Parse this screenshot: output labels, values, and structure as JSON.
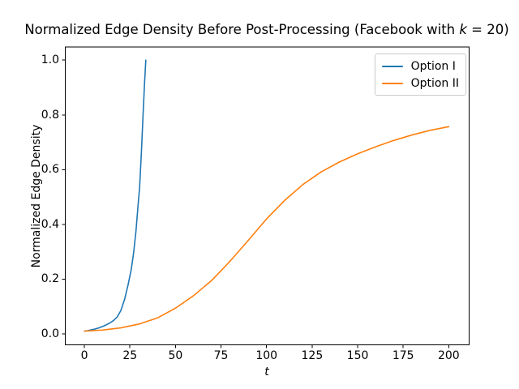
{
  "chart_data": {
    "type": "line",
    "title_prefix": "Normalized Edge Density Before Post-Processing (Facebook with ",
    "title_math_var": "k",
    "title_suffix": " = 20)",
    "title_full": "Normalized Edge Density Before Post-Processing (Facebook with k = 20)",
    "xlabel": "t",
    "ylabel": "Normalized Edge Density",
    "xlim": [
      -10.5,
      211.1
    ],
    "ylim": [
      -0.04,
      1.048
    ],
    "grid": false,
    "xticks": [
      {
        "label": "0",
        "value": 0
      },
      {
        "label": "25",
        "value": 25
      },
      {
        "label": "50",
        "value": 50
      },
      {
        "label": "75",
        "value": 75
      },
      {
        "label": "100",
        "value": 100
      },
      {
        "label": "125",
        "value": 125
      },
      {
        "label": "150",
        "value": 150
      },
      {
        "label": "175",
        "value": 175
      },
      {
        "label": "200",
        "value": 200
      }
    ],
    "yticks": [
      {
        "label": "0.0",
        "value": 0.0
      },
      {
        "label": "0.2",
        "value": 0.2
      },
      {
        "label": "0.4",
        "value": 0.4
      },
      {
        "label": "0.6",
        "value": 0.6
      },
      {
        "label": "0.8",
        "value": 0.8
      },
      {
        "label": "1.0",
        "value": 1.0
      }
    ],
    "legend": {
      "position": "upper right",
      "entries": [
        {
          "label": "Option I"
        },
        {
          "label": "Option II"
        }
      ]
    },
    "series": [
      {
        "name": "Option I",
        "color": "#1f77b4",
        "x": [
          0,
          2,
          4,
          6,
          8,
          10,
          12,
          14,
          16,
          18,
          20,
          22,
          24,
          25.7,
          27,
          28.3,
          29.4,
          30.3,
          31.3,
          32.2,
          33.0,
          33.5,
          33.7
        ],
        "y": [
          0.01,
          0.012,
          0.015,
          0.018,
          0.022,
          0.027,
          0.033,
          0.04,
          0.049,
          0.062,
          0.085,
          0.125,
          0.18,
          0.235,
          0.295,
          0.375,
          0.465,
          0.535,
          0.665,
          0.8,
          0.915,
          0.975,
          1.0
        ]
      },
      {
        "name": "Option II",
        "color": "#ff7f0e",
        "x": [
          0,
          10,
          20,
          30,
          40,
          50,
          60,
          70,
          80,
          90,
          100,
          110,
          120,
          130,
          140,
          150,
          160,
          170,
          180,
          190,
          200
        ],
        "y": [
          0.01,
          0.014,
          0.022,
          0.036,
          0.058,
          0.094,
          0.14,
          0.196,
          0.266,
          0.342,
          0.42,
          0.488,
          0.546,
          0.592,
          0.628,
          0.658,
          0.684,
          0.707,
          0.727,
          0.744,
          0.757
        ]
      }
    ]
  }
}
